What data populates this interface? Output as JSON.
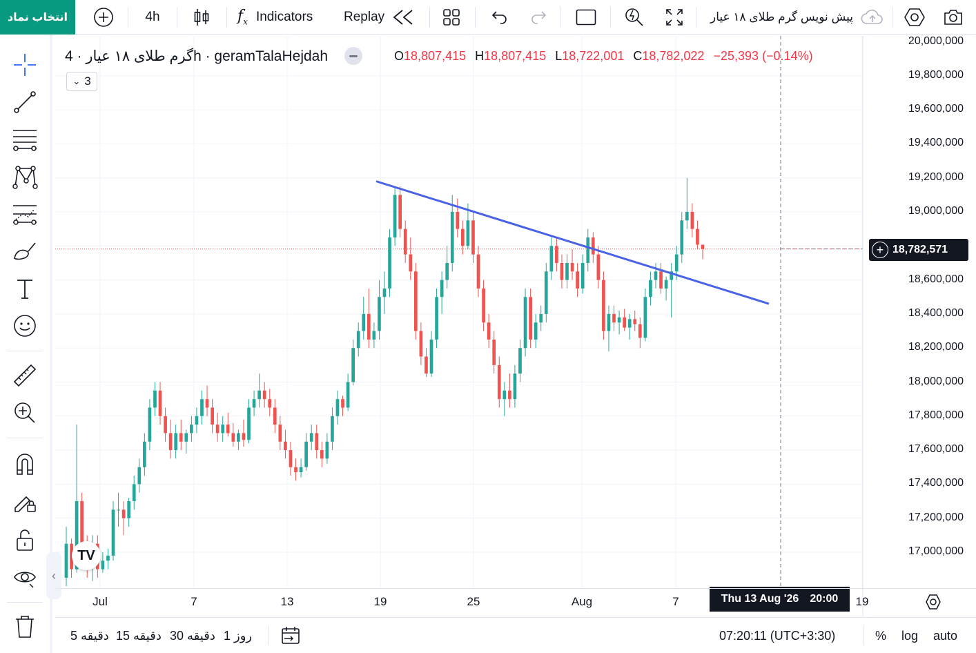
{
  "toolbar": {
    "symbol_search_label": "انتخاب نماد",
    "interval": "4h",
    "indicators_label": "Indicators",
    "replay_label": "Replay",
    "layout_name": "پیش نویس گرم طلای ۱۸ عیار"
  },
  "legend": {
    "title": "گرم طلای ۱۸ عیار · 4h · geramTalaHejdah",
    "ohlc": {
      "o_key": "O",
      "o_val": "18,807,415",
      "h_key": "H",
      "h_val": "18,807,415",
      "l_key": "L",
      "l_val": "18,722,001",
      "c_key": "C",
      "c_val": "18,782,022",
      "change": "−25,393 (−0.14%)"
    },
    "collapse_count": "3"
  },
  "price_axis": {
    "labels": [
      "20,000,000",
      "19,800,000",
      "19,600,000",
      "19,400,000",
      "19,200,000",
      "19,000,000",
      "18,600,000",
      "18,400,000",
      "18,200,000",
      "18,000,000",
      "17,800,000",
      "17,600,000",
      "17,400,000",
      "17,200,000",
      "17,000,000"
    ],
    "current_price": "18,782,571"
  },
  "time_axis": {
    "labels": [
      "Jul",
      "7",
      "13",
      "19",
      "25",
      "Aug",
      "7",
      "19"
    ],
    "crosshair_date": "Thu 13 Aug '26",
    "crosshair_time": "20:00"
  },
  "bottom": {
    "timeframes": [
      "5 دقیقه",
      "15 دقیقه",
      "30 دقیقه",
      "1 روز"
    ],
    "clock": "07:20:11 (UTC+3:30)",
    "percent_label": "%",
    "log_label": "log",
    "auto_label": "auto"
  },
  "colors": {
    "up": "#26a69a",
    "down": "#ef5350",
    "trendline": "#4a62e5",
    "accent": "#089981",
    "ohlc_values": "#f23645"
  },
  "icons": [
    "plus-circle-icon",
    "candles-icon",
    "fx-icon",
    "replay-icon",
    "layouts-icon",
    "undo-icon",
    "redo-icon",
    "snapshot-rect-icon",
    "quick-search-icon",
    "fullscreen-icon",
    "cloud-icon",
    "settings-icon",
    "camera-icon",
    "crosshair-icon",
    "trendline-tool-icon",
    "fib-tool-icon",
    "pattern-tool-icon",
    "forecast-tool-icon",
    "brush-tool-icon",
    "text-tool-icon",
    "emoji-icon",
    "ruler-icon",
    "zoom-in-icon",
    "magnet-icon",
    "lock-draw-icon",
    "unlock-icon",
    "eye-icon",
    "trash-icon",
    "date-range-icon"
  ],
  "chart_data": {
    "type": "candlestick",
    "symbol": "geramTalaHejdah",
    "interval": "4h",
    "x": [
      "Jul",
      "7",
      "13",
      "19",
      "25",
      "Aug",
      "7",
      "19"
    ],
    "ylim": [
      16850000,
      20000000
    ],
    "candles": [
      [
        16850000,
        17150000,
        16800000,
        17050000
      ],
      [
        17050000,
        17080000,
        16850000,
        16900000
      ],
      [
        16900000,
        17750000,
        16880000,
        17300000
      ],
      [
        17300000,
        17350000,
        16950000,
        17000000
      ],
      [
        17000000,
        17100000,
        16850000,
        16950000
      ],
      [
        16950000,
        17100000,
        16830000,
        17050000
      ],
      [
        17050000,
        17100000,
        16850000,
        16900000
      ],
      [
        16900000,
        17000000,
        16880000,
        16950000
      ],
      [
        16950000,
        17020000,
        16900000,
        16980000
      ],
      [
        16980000,
        17300000,
        16950000,
        17250000
      ],
      [
        17250000,
        17350000,
        17150000,
        17250000
      ],
      [
        17250000,
        17300000,
        17100000,
        17200000
      ],
      [
        17200000,
        17320000,
        17150000,
        17300000
      ],
      [
        17300000,
        17450000,
        17250000,
        17400000
      ],
      [
        17400000,
        17550000,
        17350000,
        17500000
      ],
      [
        17500000,
        17700000,
        17450000,
        17650000
      ],
      [
        17650000,
        17900000,
        17600000,
        17850000
      ],
      [
        17850000,
        18000000,
        17800000,
        17950000
      ],
      [
        17950000,
        18000000,
        17750000,
        17800000
      ],
      [
        17800000,
        17850000,
        17650000,
        17700000
      ],
      [
        17700000,
        17780000,
        17550000,
        17600000
      ],
      [
        17600000,
        17750000,
        17550000,
        17700000
      ],
      [
        17700000,
        17780000,
        17600000,
        17650000
      ],
      [
        17650000,
        17720000,
        17580000,
        17700000
      ],
      [
        17700000,
        17800000,
        17650000,
        17750000
      ],
      [
        17750000,
        17850000,
        17700000,
        17800000
      ],
      [
        17800000,
        17950000,
        17750000,
        17900000
      ],
      [
        17900000,
        17980000,
        17800000,
        17850000
      ],
      [
        17850000,
        17900000,
        17700000,
        17750000
      ],
      [
        17750000,
        17820000,
        17650000,
        17700000
      ],
      [
        17700000,
        17800000,
        17650000,
        17750000
      ],
      [
        17750000,
        17820000,
        17680000,
        17700000
      ],
      [
        17700000,
        17760000,
        17620000,
        17650000
      ],
      [
        17650000,
        17720000,
        17600000,
        17700000
      ],
      [
        17700000,
        17780000,
        17620000,
        17660000
      ],
      [
        17660000,
        17900000,
        17640000,
        17850000
      ],
      [
        17850000,
        17950000,
        17800000,
        17900000
      ],
      [
        17900000,
        18050000,
        17850000,
        17950000
      ],
      [
        17950000,
        18000000,
        17850000,
        17900000
      ],
      [
        17900000,
        17960000,
        17800000,
        17850000
      ],
      [
        17850000,
        17900000,
        17700000,
        17750000
      ],
      [
        17750000,
        17800000,
        17600000,
        17650000
      ],
      [
        17650000,
        17720000,
        17550000,
        17600000
      ],
      [
        17600000,
        17650000,
        17450000,
        17500000
      ],
      [
        17500000,
        17550000,
        17420000,
        17470000
      ],
      [
        17470000,
        17550000,
        17440000,
        17500000
      ],
      [
        17500000,
        17700000,
        17480000,
        17650000
      ],
      [
        17650000,
        17750000,
        17600000,
        17700000
      ],
      [
        17700000,
        17750000,
        17550000,
        17600000
      ],
      [
        17600000,
        17650000,
        17500000,
        17550000
      ],
      [
        17550000,
        17700000,
        17520000,
        17650000
      ],
      [
        17650000,
        17850000,
        17600000,
        17800000
      ],
      [
        17800000,
        17950000,
        17750000,
        17900000
      ],
      [
        17900000,
        17920000,
        17800000,
        17850000
      ],
      [
        17850000,
        18050000,
        17830000,
        18000000
      ],
      [
        18000000,
        18250000,
        17980000,
        18200000
      ],
      [
        18200000,
        18350000,
        18150000,
        18300000
      ],
      [
        18300000,
        18500000,
        18250000,
        18400000
      ],
      [
        18400000,
        18550000,
        18200000,
        18250000
      ],
      [
        18250000,
        18350000,
        18200000,
        18300000
      ],
      [
        18300000,
        18600000,
        18250000,
        18500000
      ],
      [
        18500000,
        18650000,
        18400000,
        18550000
      ],
      [
        18550000,
        18900000,
        18500000,
        18850000
      ],
      [
        18850000,
        19150000,
        18800000,
        19100000
      ],
      [
        19100000,
        19150000,
        18850000,
        18900000
      ],
      [
        18900000,
        18950000,
        18700000,
        18750000
      ],
      [
        18750000,
        18850000,
        18600000,
        18650000
      ],
      [
        18650000,
        18700000,
        18250000,
        18300000
      ],
      [
        18300000,
        18350000,
        18100000,
        18150000
      ],
      [
        18150000,
        18200000,
        18030000,
        18050000
      ],
      [
        18050000,
        18300000,
        18030000,
        18250000
      ],
      [
        18250000,
        18550000,
        18200000,
        18500000
      ],
      [
        18500000,
        18650000,
        18400000,
        18600000
      ],
      [
        18600000,
        18800000,
        18550000,
        18700000
      ],
      [
        18700000,
        19100000,
        18650000,
        19000000
      ],
      [
        19000000,
        19080000,
        18850000,
        18900000
      ],
      [
        18900000,
        18950000,
        18750000,
        18800000
      ],
      [
        18800000,
        19050000,
        18780000,
        18950000
      ],
      [
        18950000,
        19000000,
        18700000,
        18750000
      ],
      [
        18750000,
        18800000,
        18500000,
        18550000
      ],
      [
        18550000,
        18600000,
        18300000,
        18350000
      ],
      [
        18350000,
        18400000,
        18200000,
        18250000
      ],
      [
        18250000,
        18300000,
        18050000,
        18100000
      ],
      [
        18100000,
        18150000,
        17850000,
        17900000
      ],
      [
        17900000,
        18000000,
        17800000,
        17950000
      ],
      [
        17950000,
        18050000,
        17850000,
        17900000
      ],
      [
        17900000,
        18100000,
        17850000,
        18050000
      ],
      [
        18050000,
        18250000,
        18000000,
        18200000
      ],
      [
        18200000,
        18550000,
        18150000,
        18500000
      ],
      [
        18500000,
        18550000,
        18200000,
        18250000
      ],
      [
        18250000,
        18400000,
        18200000,
        18350000
      ],
      [
        18350000,
        18450000,
        18300000,
        18400000
      ],
      [
        18400000,
        18700000,
        18350000,
        18650000
      ],
      [
        18650000,
        18850000,
        18600000,
        18800000
      ],
      [
        18800000,
        18850000,
        18650000,
        18700000
      ],
      [
        18700000,
        18750000,
        18550000,
        18600000
      ],
      [
        18600000,
        18750000,
        18550000,
        18700000
      ],
      [
        18700000,
        18780000,
        18600000,
        18650000
      ],
      [
        18650000,
        18700000,
        18500000,
        18550000
      ],
      [
        18550000,
        18750000,
        18520000,
        18700000
      ],
      [
        18700000,
        18900000,
        18650000,
        18850000
      ],
      [
        18850000,
        18880000,
        18700000,
        18750000
      ],
      [
        18750000,
        18800000,
        18550000,
        18600000
      ],
      [
        18600000,
        18650000,
        18250000,
        18300000
      ],
      [
        18300000,
        18450000,
        18180000,
        18400000
      ],
      [
        18400000,
        18450000,
        18300000,
        18350000
      ],
      [
        18350000,
        18420000,
        18280000,
        18380000
      ],
      [
        18380000,
        18430000,
        18300000,
        18320000
      ],
      [
        18320000,
        18400000,
        18250000,
        18370000
      ],
      [
        18370000,
        18420000,
        18300000,
        18340000
      ],
      [
        18340000,
        18380000,
        18200000,
        18260000
      ],
      [
        18260000,
        18550000,
        18240000,
        18500000
      ],
      [
        18500000,
        18650000,
        18450000,
        18600000
      ],
      [
        18600000,
        18700000,
        18550000,
        18650000
      ],
      [
        18650000,
        18700000,
        18520000,
        18550000
      ],
      [
        18550000,
        18620000,
        18480000,
        18600000
      ],
      [
        18600000,
        18700000,
        18380000,
        18650000
      ],
      [
        18650000,
        18800000,
        18600000,
        18750000
      ],
      [
        18750000,
        19000000,
        18700000,
        18950000
      ],
      [
        18950000,
        19200000,
        18900000,
        19000000
      ],
      [
        19000000,
        19050000,
        18850000,
        18900000
      ],
      [
        18900000,
        18950000,
        18780000,
        18807415
      ],
      [
        18807415,
        18807415,
        18722001,
        18782022
      ]
    ],
    "trendline": {
      "start": [
        "19",
        19180000
      ],
      "end": [
        "13 Aug",
        18460000
      ]
    },
    "current_price_line": 18782571,
    "crosshair_x": "Thu 13 Aug '26 20:00"
  }
}
